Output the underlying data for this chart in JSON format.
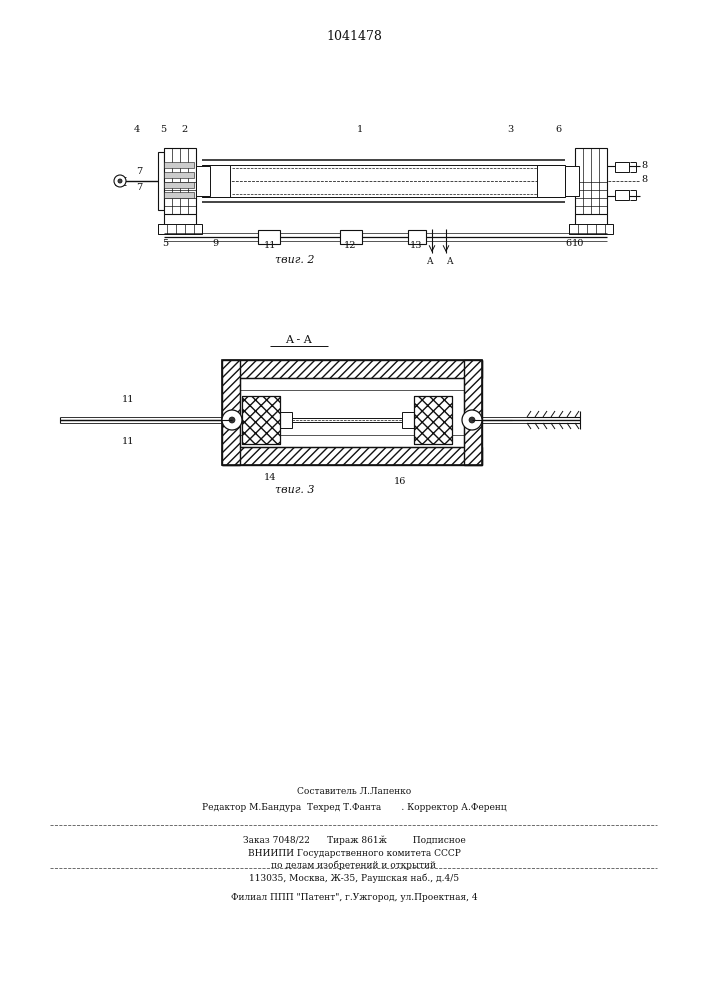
{
  "patent_number": "1041478",
  "fig2_label": "τвиг. 2",
  "fig3_label": "τвиг. 3",
  "section_label": "A - A",
  "line_color": "#111111",
  "bottom_text_line1": "Составитель Л.Лапенко",
  "bottom_text_line2": "Редактор М.Бандура  Техред Т.Фанта       . Корректор А.Ференц",
  "bottom_text_line3": "Заказ 7048/22      Тираж 861ӂ         Подписное",
  "bottom_text_line4": "ВНИИПИ Государственного комитета СССР",
  "bottom_text_line5": "по делам изобретений и открытий",
  "bottom_text_line6": "113035, Москва, Ж-35, Раушская наб., д.4/5",
  "bottom_text_line7": "Филиал ППП \"Патент\", г.Ужгород, ул.Проектная, 4"
}
